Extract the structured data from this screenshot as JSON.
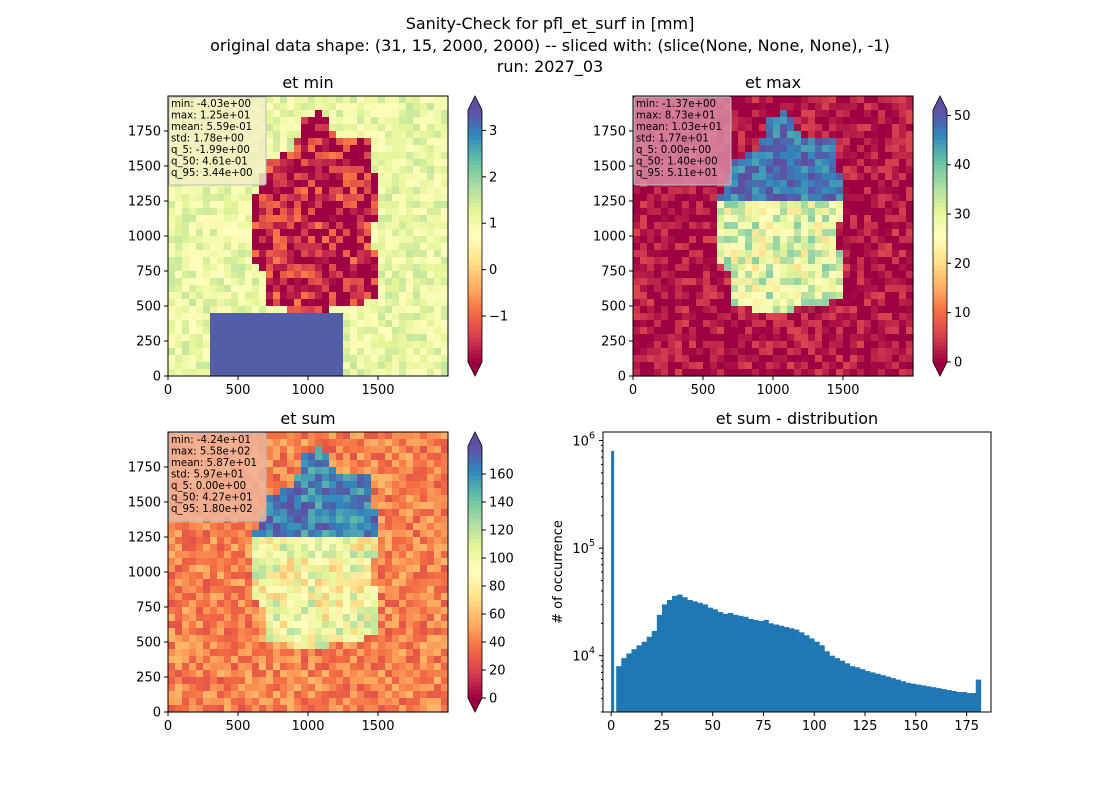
{
  "figure": {
    "title_lines": [
      "Sanity-Check for pfl_et_surf in [mm]",
      "original data shape: (31, 15, 2000, 2000) -- sliced with: (slice(None, None, None), -1)",
      "run: 2027_03"
    ]
  },
  "chart_data": [
    {
      "type": "heatmap",
      "title": "et min",
      "colormap": "Spectral",
      "xlim": [
        0,
        2000
      ],
      "ylim": [
        0,
        2000
      ],
      "xticks": [
        0,
        500,
        1000,
        1500
      ],
      "yticks": [
        0,
        250,
        500,
        750,
        1000,
        1250,
        1500,
        1750
      ],
      "colorbar": {
        "vmin": -1.99,
        "vmax": 3.44,
        "ticks": [
          -1,
          0,
          1,
          2,
          3
        ],
        "tick_labels": [
          "−1",
          "0",
          "1",
          "2",
          "3"
        ],
        "extend": "both"
      },
      "stats": [
        "min: -4.03e+00",
        "max: 1.25e+01",
        "mean: 5.59e-01",
        "std: 1.78e+00",
        "q_5: -1.99e+00",
        "q_50: 4.61e-01",
        "q_95: 3.44e+00"
      ],
      "stats_box_color": "#f3f0c4",
      "field": {
        "inside": -1.7,
        "outside": 1.1,
        "south": 3.3
      }
    },
    {
      "type": "heatmap",
      "title": "et max",
      "colormap": "Spectral",
      "xlim": [
        0,
        2000
      ],
      "ylim": [
        0,
        2000
      ],
      "xticks": [
        0,
        500,
        1000,
        1500
      ],
      "yticks": [
        0,
        250,
        500,
        750,
        1000,
        1250,
        1500,
        1750
      ],
      "colorbar": {
        "vmin": 0.0,
        "vmax": 51.1,
        "ticks": [
          0,
          10,
          20,
          30,
          40,
          50
        ],
        "tick_labels": [
          "0",
          "10",
          "20",
          "30",
          "40",
          "50"
        ],
        "extend": "both"
      },
      "stats": [
        "min: -1.37e+00",
        "max: 8.73e+01",
        "mean: 1.03e+01",
        "std: 1.77e+01",
        "q_5: 0.00e+00",
        "q_50: 1.40e+00",
        "q_95: 5.11e+01"
      ],
      "stats_box_color": "#d98aa3",
      "field": {
        "inside": 30,
        "outside": 1.4,
        "north": 48
      }
    },
    {
      "type": "heatmap",
      "title": "et sum",
      "colormap": "Spectral",
      "xlim": [
        0,
        2000
      ],
      "ylim": [
        0,
        2000
      ],
      "xticks": [
        0,
        500,
        1000,
        1500
      ],
      "yticks": [
        0,
        250,
        500,
        750,
        1000,
        1250,
        1500,
        1750
      ],
      "colorbar": {
        "vmin": 0.0,
        "vmax": 180,
        "ticks": [
          0,
          20,
          40,
          60,
          80,
          100,
          120,
          140,
          160
        ],
        "tick_labels": [
          "0",
          "20",
          "40",
          "60",
          "80",
          "100",
          "120",
          "140",
          "160"
        ],
        "extend": "both"
      },
      "stats": [
        "min: -4.24e+01",
        "max: 5.58e+02",
        "mean: 5.87e+01",
        "std: 5.97e+01",
        "q_5: 0.00e+00",
        "q_50: 4.27e+01",
        "q_95: 1.80e+02"
      ],
      "stats_box_color": "#f1b49a",
      "field": {
        "inside": 95,
        "outside": 42,
        "north": 165
      }
    },
    {
      "type": "bar",
      "title": "et sum - distribution",
      "ylabel": "# of occurrence",
      "xlabel": "",
      "yscale": "log",
      "xlim": [
        -4,
        187
      ],
      "ylim": [
        3000,
        1200000
      ],
      "xticks": [
        0,
        25,
        50,
        75,
        100,
        125,
        150,
        175
      ],
      "yticks": [
        10000,
        100000,
        1000000
      ],
      "ytick_labels": [
        [
          "10",
          "4"
        ],
        [
          "10",
          "5"
        ],
        [
          "10",
          "6"
        ]
      ],
      "bar_color": "#1f77b4",
      "bin_width": 0.9,
      "x": [
        0,
        2.5,
        5,
        7.5,
        10,
        12.5,
        15,
        17.5,
        20,
        22.5,
        25,
        27.5,
        30,
        32.5,
        35,
        37.5,
        40,
        42.5,
        45,
        47.5,
        50,
        52.5,
        55,
        57.5,
        60,
        62.5,
        65,
        67.5,
        70,
        72.5,
        75,
        77.5,
        80,
        82.5,
        85,
        87.5,
        90,
        92.5,
        95,
        97.5,
        100,
        102.5,
        105,
        107.5,
        110,
        112.5,
        115,
        117.5,
        120,
        122.5,
        125,
        127.5,
        130,
        132.5,
        135,
        137.5,
        140,
        142.5,
        145,
        147.5,
        150,
        152.5,
        155,
        157.5,
        160,
        162.5,
        165,
        167.5,
        170,
        172.5,
        175,
        177.5,
        179.5
      ],
      "values": [
        800000,
        8000,
        9500,
        10500,
        11500,
        12500,
        13500,
        15000,
        17000,
        24000,
        30000,
        33000,
        36000,
        37000,
        35000,
        33000,
        32000,
        31000,
        30000,
        28000,
        27000,
        25500,
        24500,
        25000,
        24000,
        23500,
        23000,
        22000,
        21500,
        21000,
        21500,
        20000,
        19500,
        19000,
        18500,
        18000,
        17500,
        16500,
        15500,
        14500,
        13500,
        12500,
        11000,
        10000,
        9500,
        9000,
        8500,
        8000,
        7800,
        7500,
        7200,
        7000,
        6800,
        6600,
        6400,
        6200,
        6000,
        5800,
        5600,
        5500,
        5400,
        5300,
        5200,
        5100,
        5000,
        4900,
        4800,
        4700,
        4600,
        4600,
        4500,
        4500,
        6000
      ]
    }
  ]
}
